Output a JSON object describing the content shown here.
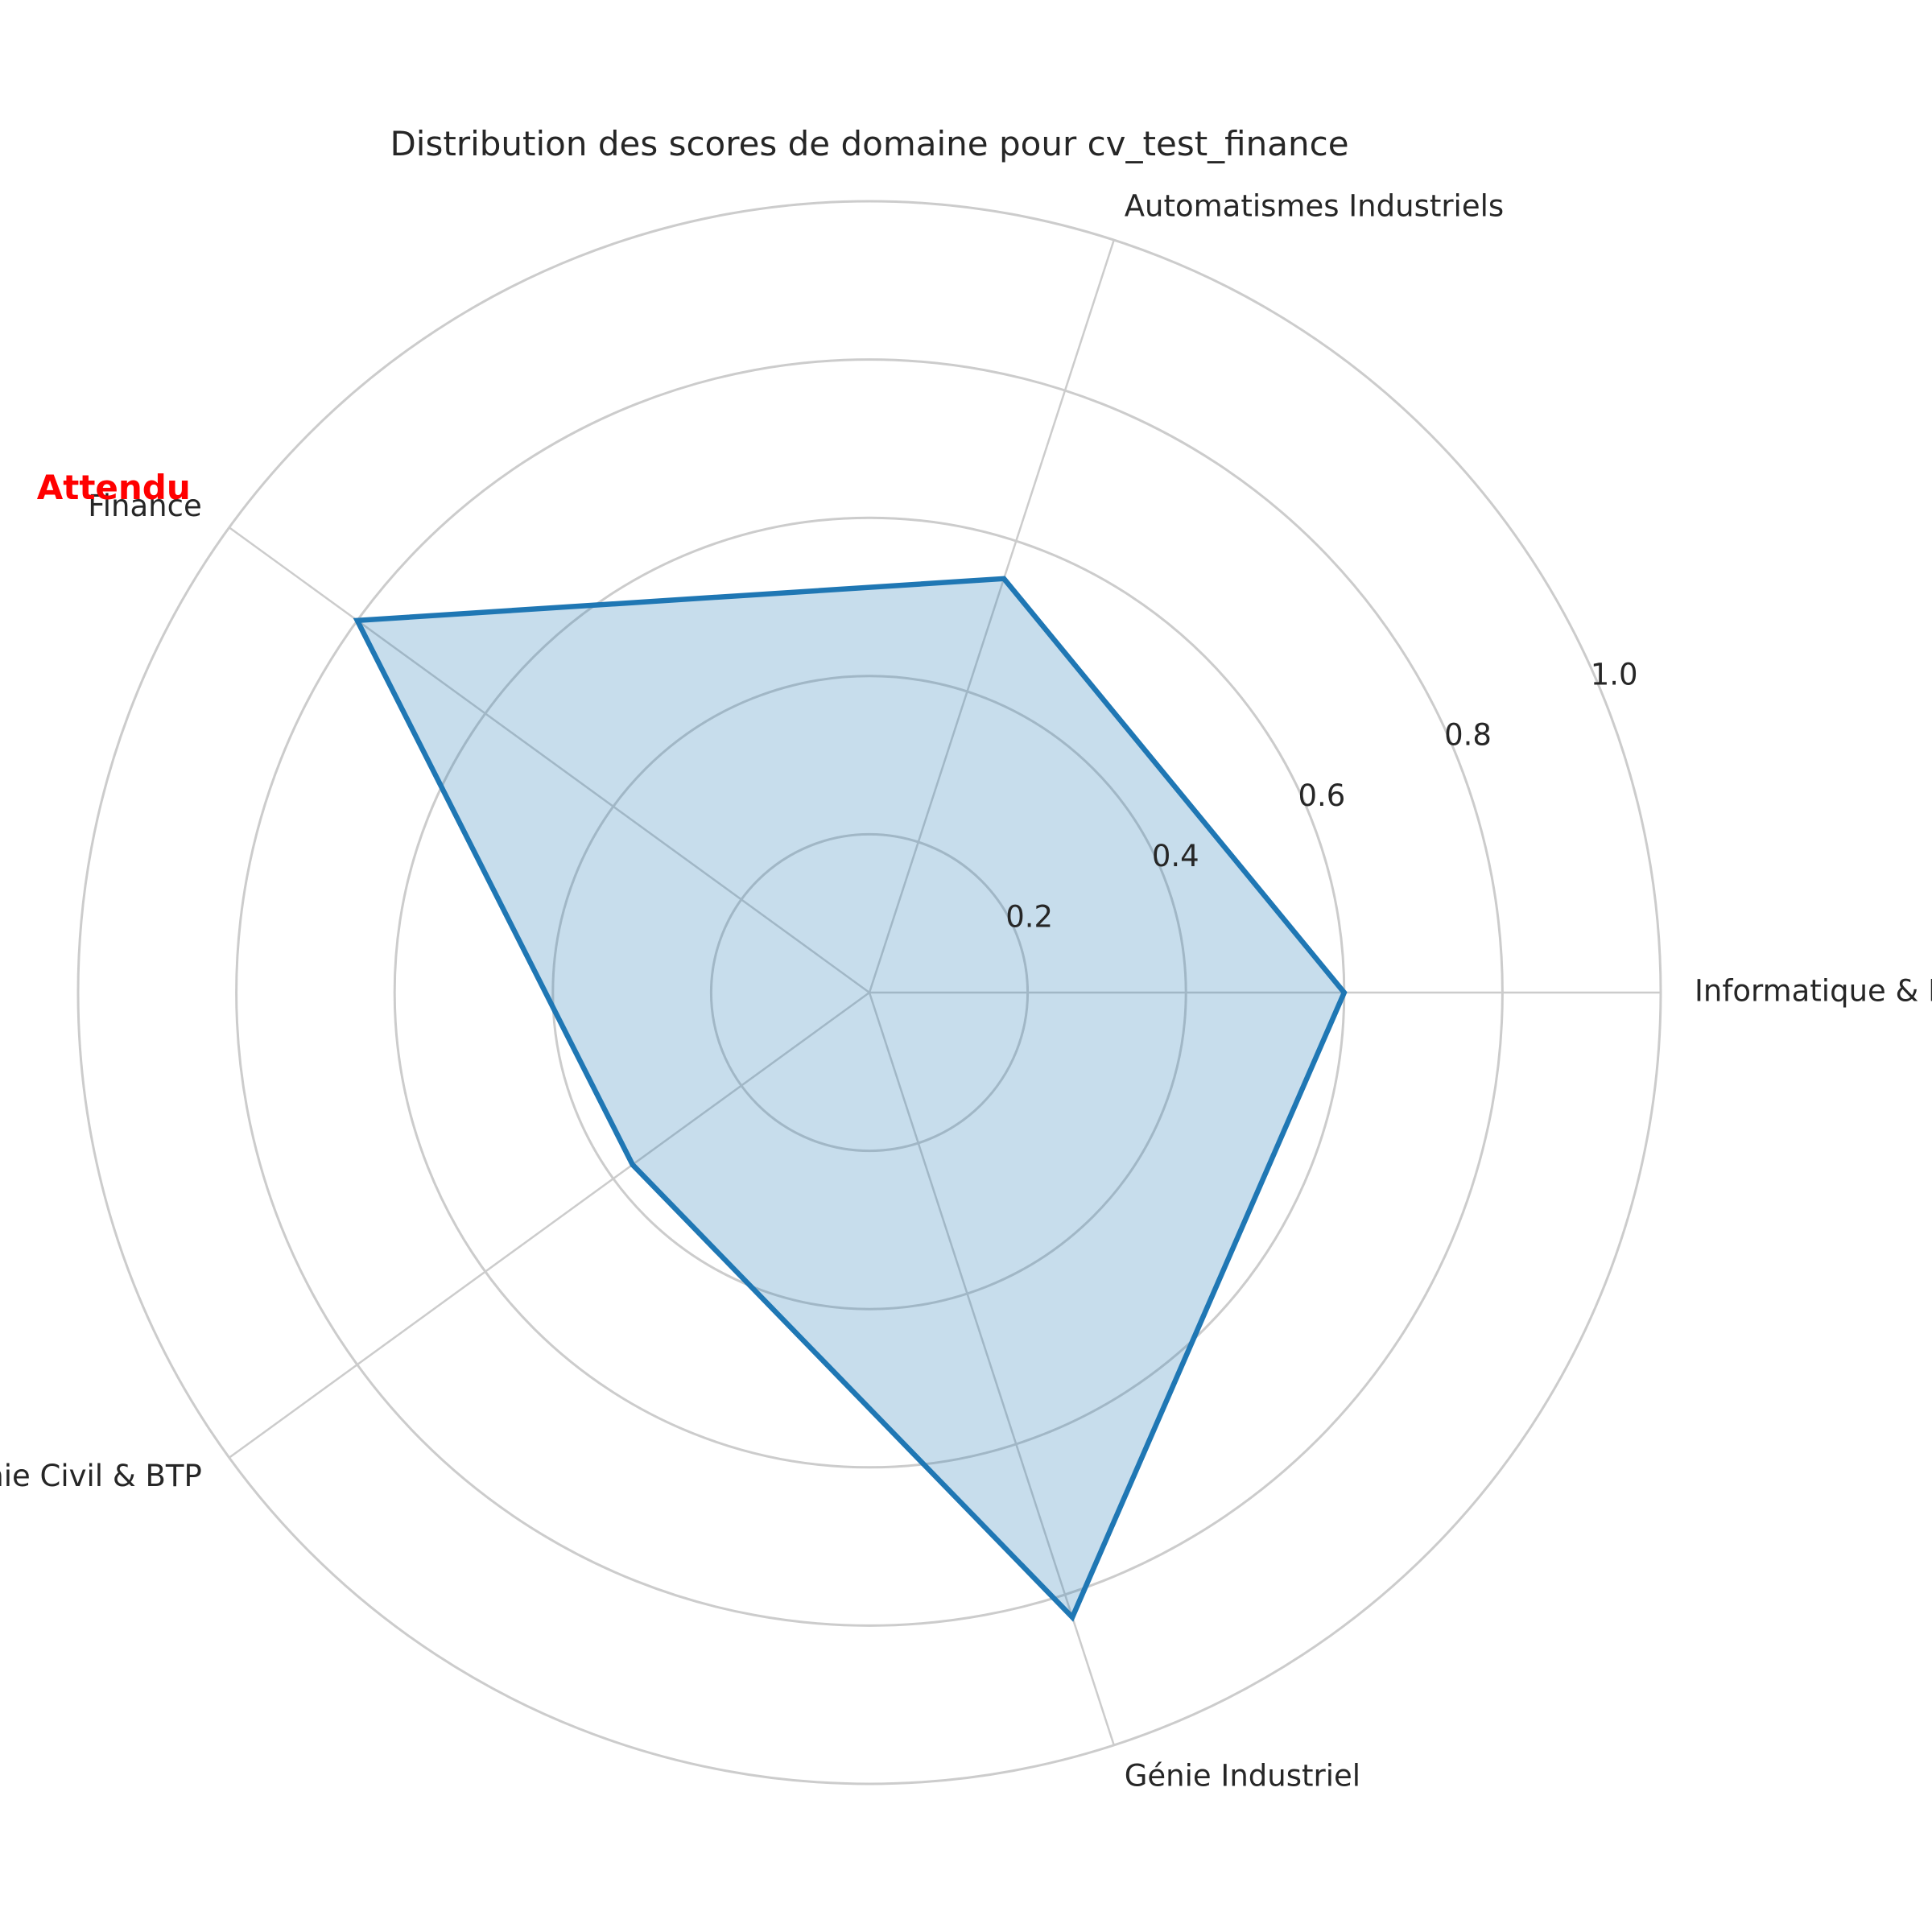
{
  "chart_data": {
    "type": "radar",
    "title": "Distribution des scores de domaine pour cv_test_finance",
    "categories": [
      "Informatique & Réseaux",
      "Automatismes Industriels",
      "Finance",
      "Génie Civil & BTP",
      "Génie Industriel"
    ],
    "series": [
      {
        "values": [
          0.6,
          0.55,
          0.8,
          0.37,
          0.83
        ],
        "color": "#1f77b4"
      }
    ],
    "rlim": [
      0,
      1.0
    ],
    "rticks": [
      0.2,
      0.4,
      0.6,
      0.8,
      1.0
    ],
    "rtick_labels": [
      "0.2",
      "0.4",
      "0.6",
      "0.8",
      "1.0"
    ],
    "grid": true,
    "annotations": [
      {
        "text": "Attendu",
        "category": "Finance",
        "color": "#ff0000"
      }
    ]
  }
}
